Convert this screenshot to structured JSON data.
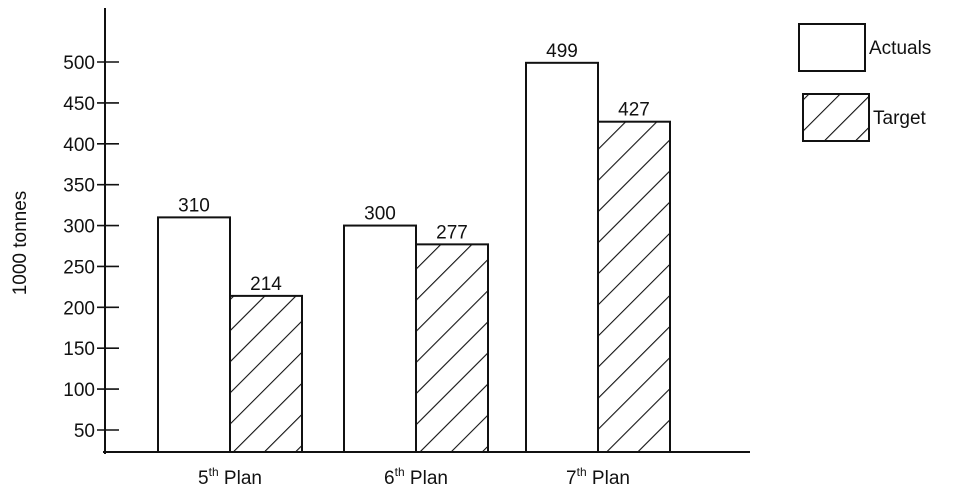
{
  "chart_data": {
    "type": "bar",
    "categories": [
      "5th Plan",
      "6th Plan",
      "7th Plan"
    ],
    "category_labels": [
      {
        "num": "5",
        "sup": "th",
        "rest": " Plan"
      },
      {
        "num": "6",
        "sup": "th",
        "rest": " Plan"
      },
      {
        "num": "7",
        "sup": "th",
        "rest": " Plan"
      }
    ],
    "series": [
      {
        "name": "Actuals",
        "values": [
          310,
          300,
          499
        ],
        "fill": "plain"
      },
      {
        "name": "Target",
        "values": [
          214,
          277,
          427
        ],
        "fill": "hatched"
      }
    ],
    "title": "",
    "xlabel": "",
    "ylabel": "1000 tonnes",
    "yticks": [
      "50",
      "100",
      "150",
      "200",
      "250",
      "300",
      "350",
      "400",
      "450",
      "500"
    ],
    "ylim": [
      0,
      550
    ],
    "grid": false,
    "legend_position": "top-right",
    "colors": {
      "ink": "#111111",
      "background": "#ffffff"
    }
  }
}
